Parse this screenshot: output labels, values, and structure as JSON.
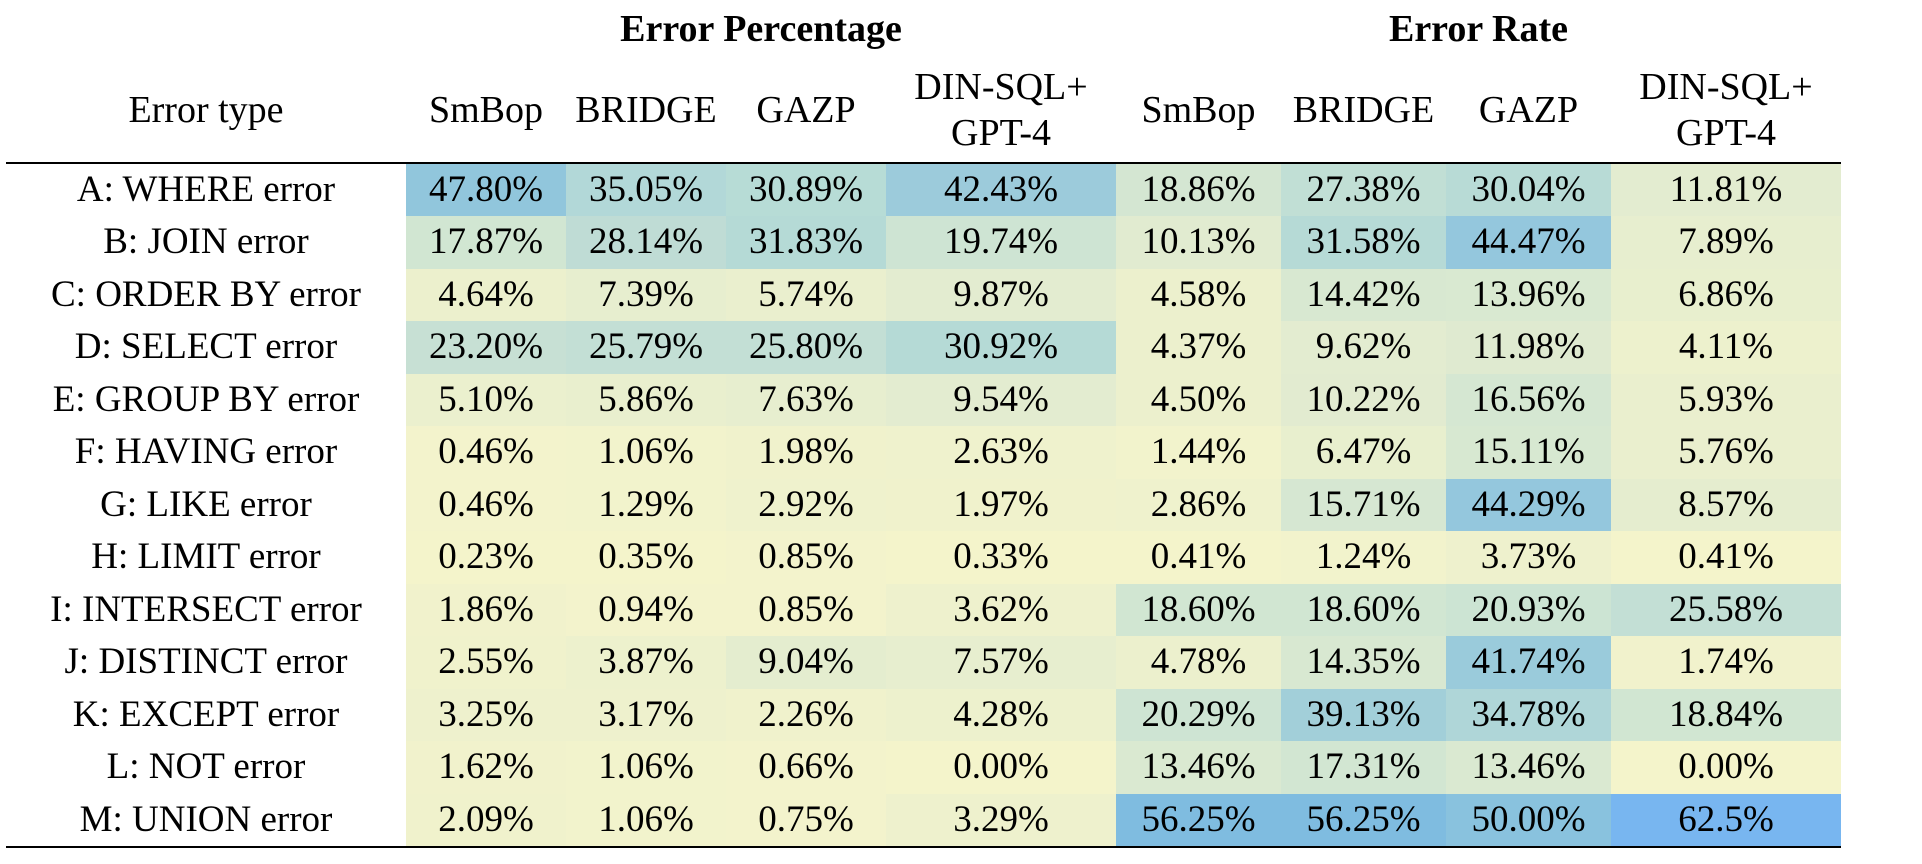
{
  "table": {
    "group_headers": [
      "Error Percentage",
      "Error Rate"
    ],
    "row_header": "Error type",
    "column_headers": [
      [
        "SmBop"
      ],
      [
        "BRIDGE"
      ],
      [
        "GAZP"
      ],
      [
        "DIN-SQL+",
        "GPT-4"
      ],
      [
        "SmBop"
      ],
      [
        "BRIDGE"
      ],
      [
        "GAZP"
      ],
      [
        "DIN-SQL+",
        "GPT-4"
      ]
    ],
    "rows": [
      {
        "label": "A: WHERE error",
        "cells": [
          "47.80%",
          "35.05%",
          "30.89%",
          "42.43%",
          "18.86%",
          "27.38%",
          "30.04%",
          "11.81%"
        ],
        "colors": [
          "#91c6dc",
          "#b2d8d8",
          "#b7dcd6",
          "#9ccbdb",
          "#d4e6d2",
          "#c1dfd5",
          "#b8dbd6",
          "#e3ecd0"
        ]
      },
      {
        "label": "B: JOIN error",
        "cells": [
          "17.87%",
          "28.14%",
          "31.83%",
          "19.74%",
          "10.13%",
          "31.58%",
          "44.47%",
          "7.89%"
        ],
        "colors": [
          "#d1e6d2",
          "#bfdcd5",
          "#b5dad6",
          "#cee4d3",
          "#e1ebd0",
          "#b6dad6",
          "#94c7dd",
          "#e7eecf"
        ]
      },
      {
        "label": "C: ORDER BY error",
        "cells": [
          "4.64%",
          "7.39%",
          "5.74%",
          "9.87%",
          "4.58%",
          "14.42%",
          "13.96%",
          "6.86%"
        ],
        "colors": [
          "#ecf0cd",
          "#e7eecf",
          "#eaefce",
          "#e3ecd0",
          "#ecf0cd",
          "#d8e8d1",
          "#d9e9d1",
          "#e8efce"
        ]
      },
      {
        "label": "D: SELECT error",
        "cells": [
          "23.20%",
          "25.79%",
          "25.80%",
          "30.92%",
          "4.37%",
          "9.62%",
          "11.98%",
          "4.11%"
        ],
        "colors": [
          "#c7e0d4",
          "#c3dfd5",
          "#c3dfd5",
          "#b5dad6",
          "#ecf0cd",
          "#e3ecd0",
          "#dfead0",
          "#edf1cd"
        ]
      },
      {
        "label": "E: GROUP BY error",
        "cells": [
          "5.10%",
          "5.86%",
          "7.63%",
          "9.54%",
          "4.50%",
          "10.22%",
          "16.56%",
          "5.93%"
        ],
        "colors": [
          "#ebf0ce",
          "#e9efce",
          "#e7eecf",
          "#e3ecd0",
          "#ecf0cd",
          "#e2ebd0",
          "#d5e7d2",
          "#eaefce"
        ]
      },
      {
        "label": "F: HAVING error",
        "cells": [
          "0.46%",
          "1.06%",
          "1.98%",
          "2.63%",
          "1.44%",
          "6.47%",
          "15.11%",
          "5.76%"
        ],
        "colors": [
          "#f3f3cc",
          "#f2f3cc",
          "#f0f2cc",
          "#eff2cd",
          "#f2f3cc",
          "#e8efce",
          "#d7e8d1",
          "#eaefce"
        ]
      },
      {
        "label": "G: LIKE error",
        "cells": [
          "0.46%",
          "1.29%",
          "2.92%",
          "1.97%",
          "2.86%",
          "15.71%",
          "44.29%",
          "8.57%"
        ],
        "colors": [
          "#f3f3cc",
          "#f2f3cc",
          "#eff2cd",
          "#f0f2cc",
          "#eff2cd",
          "#d6e7d2",
          "#94c7dd",
          "#e5edcf"
        ]
      },
      {
        "label": "H: LIMIT error",
        "cells": [
          "0.23%",
          "0.35%",
          "0.85%",
          "0.33%",
          "0.41%",
          "1.24%",
          "3.73%",
          "0.41%"
        ],
        "colors": [
          "#f4f4cb",
          "#f4f4cb",
          "#f3f3cc",
          "#f4f4cb",
          "#f4f4cb",
          "#f2f3cc",
          "#eef1cd",
          "#f4f4cb"
        ]
      },
      {
        "label": "I: INTERSECT error",
        "cells": [
          "1.86%",
          "0.94%",
          "0.85%",
          "3.62%",
          "18.60%",
          "18.60%",
          "20.93%",
          "25.58%"
        ],
        "colors": [
          "#f1f2cc",
          "#f3f3cc",
          "#f3f3cc",
          "#eef1cd",
          "#d1e6d2",
          "#d1e6d2",
          "#cce4d3",
          "#c3dfd5"
        ]
      },
      {
        "label": "J: DISTINCT error",
        "cells": [
          "2.55%",
          "3.87%",
          "9.04%",
          "7.57%",
          "4.78%",
          "14.35%",
          "41.74%",
          "1.74%"
        ],
        "colors": [
          "#f0f2cc",
          "#edf1cd",
          "#e4edcf",
          "#e7eecf",
          "#ecf0cd",
          "#d8e8d1",
          "#9acbdb",
          "#f1f2cc"
        ]
      },
      {
        "label": "K: EXCEPT error",
        "cells": [
          "3.25%",
          "3.17%",
          "2.26%",
          "4.28%",
          "20.29%",
          "39.13%",
          "34.78%",
          "18.84%"
        ],
        "colors": [
          "#eef1cd",
          "#eef1cd",
          "#f0f2cc",
          "#edf1cd",
          "#cee4d3",
          "#a2cfd9",
          "#afd6d8",
          "#d1e6d2"
        ]
      },
      {
        "label": "L: NOT error",
        "cells": [
          "1.62%",
          "1.06%",
          "0.66%",
          "0.00%",
          "13.46%",
          "17.31%",
          "13.46%",
          "0.00%"
        ],
        "colors": [
          "#f1f2cc",
          "#f2f3cc",
          "#f3f3cc",
          "#f4f4cb",
          "#dae9d1",
          "#d2e6d2",
          "#dae9d1",
          "#f4f4cb"
        ]
      },
      {
        "label": "M: UNION error",
        "cells": [
          "2.09%",
          "1.06%",
          "0.75%",
          "3.29%",
          "56.25%",
          "56.25%",
          "50.00%",
          "62.5%"
        ],
        "colors": [
          "#f0f2cc",
          "#f2f3cc",
          "#f3f3cc",
          "#eef1cd",
          "#7fbce0",
          "#7fbce0",
          "#89c2de",
          "#78b6f0"
        ]
      }
    ]
  }
}
